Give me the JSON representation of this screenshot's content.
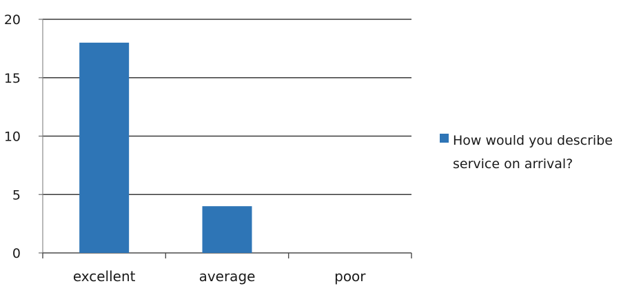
{
  "chart_data": {
    "type": "bar",
    "categories": [
      "excellent",
      "average",
      "poor"
    ],
    "series": [
      {
        "name": "How would you describe service on arrival?",
        "values": [
          18,
          4,
          0
        ]
      }
    ],
    "ylim": [
      0,
      20
    ],
    "yticks": [
      0,
      5,
      10,
      15,
      20
    ],
    "grid": true,
    "legend_position": "right",
    "legend_lines": [
      "How would you describe",
      "service on arrival?"
    ],
    "bar_color": "#2e75b6"
  }
}
